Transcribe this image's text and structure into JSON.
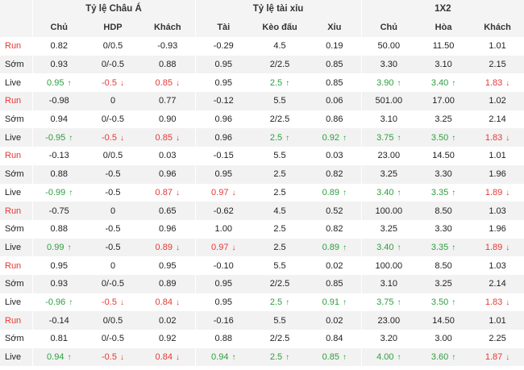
{
  "groups": [
    {
      "title": "Tỷ lệ Châu Á",
      "columns": [
        "Chủ",
        "HDP",
        "Khách"
      ]
    },
    {
      "title": "Tỷ lệ tài xỉu",
      "columns": [
        "Tài",
        "Kèo đấu",
        "Xỉu"
      ]
    },
    {
      "title": "1X2",
      "columns": [
        "Chủ",
        "Hòa",
        "Khách"
      ]
    }
  ],
  "colors": {
    "up": "#2e9e3e",
    "down": "#e53935",
    "run_label": "#e53935",
    "alt_row_bg": "#f2f2f2"
  },
  "rows": [
    {
      "label": "Run",
      "cells": [
        {
          "v": "0.82"
        },
        {
          "v": "0/0.5"
        },
        {
          "v": "-0.93"
        },
        {
          "v": "-0.29"
        },
        {
          "v": "4.5"
        },
        {
          "v": "0.19"
        },
        {
          "v": "50.00"
        },
        {
          "v": "11.50"
        },
        {
          "v": "1.01"
        }
      ]
    },
    {
      "label": "Sớm",
      "cells": [
        {
          "v": "0.93"
        },
        {
          "v": "0/-0.5"
        },
        {
          "v": "0.88"
        },
        {
          "v": "0.95"
        },
        {
          "v": "2/2.5"
        },
        {
          "v": "0.85"
        },
        {
          "v": "3.30"
        },
        {
          "v": "3.10"
        },
        {
          "v": "2.15"
        }
      ]
    },
    {
      "label": "Live",
      "cells": [
        {
          "v": "0.95",
          "t": "up"
        },
        {
          "v": "-0.5",
          "t": "down"
        },
        {
          "v": "0.85",
          "t": "down"
        },
        {
          "v": "0.95"
        },
        {
          "v": "2.5",
          "t": "up"
        },
        {
          "v": "0.85"
        },
        {
          "v": "3.90",
          "t": "up"
        },
        {
          "v": "3.40",
          "t": "up"
        },
        {
          "v": "1.83",
          "t": "down"
        }
      ]
    },
    {
      "label": "Run",
      "cells": [
        {
          "v": "-0.98"
        },
        {
          "v": "0"
        },
        {
          "v": "0.77"
        },
        {
          "v": "-0.12"
        },
        {
          "v": "5.5"
        },
        {
          "v": "0.06"
        },
        {
          "v": "501.00"
        },
        {
          "v": "17.00"
        },
        {
          "v": "1.02"
        }
      ]
    },
    {
      "label": "Sớm",
      "cells": [
        {
          "v": "0.94"
        },
        {
          "v": "0/-0.5"
        },
        {
          "v": "0.90"
        },
        {
          "v": "0.96"
        },
        {
          "v": "2/2.5"
        },
        {
          "v": "0.86"
        },
        {
          "v": "3.10"
        },
        {
          "v": "3.25"
        },
        {
          "v": "2.14"
        }
      ]
    },
    {
      "label": "Live",
      "cells": [
        {
          "v": "-0.95",
          "t": "up"
        },
        {
          "v": "-0.5",
          "t": "down"
        },
        {
          "v": "0.85",
          "t": "down"
        },
        {
          "v": "0.96"
        },
        {
          "v": "2.5",
          "t": "up"
        },
        {
          "v": "0.92",
          "t": "up"
        },
        {
          "v": "3.75",
          "t": "up"
        },
        {
          "v": "3.50",
          "t": "up"
        },
        {
          "v": "1.83",
          "t": "down"
        }
      ]
    },
    {
      "label": "Run",
      "cells": [
        {
          "v": "-0.13"
        },
        {
          "v": "0/0.5"
        },
        {
          "v": "0.03"
        },
        {
          "v": "-0.15"
        },
        {
          "v": "5.5"
        },
        {
          "v": "0.03"
        },
        {
          "v": "23.00"
        },
        {
          "v": "14.50"
        },
        {
          "v": "1.01"
        }
      ]
    },
    {
      "label": "Sớm",
      "cells": [
        {
          "v": "0.88"
        },
        {
          "v": "-0.5"
        },
        {
          "v": "0.96"
        },
        {
          "v": "0.95"
        },
        {
          "v": "2.5"
        },
        {
          "v": "0.82"
        },
        {
          "v": "3.25"
        },
        {
          "v": "3.30"
        },
        {
          "v": "1.96"
        }
      ]
    },
    {
      "label": "Live",
      "cells": [
        {
          "v": "-0.99",
          "t": "up"
        },
        {
          "v": "-0.5"
        },
        {
          "v": "0.87",
          "t": "down"
        },
        {
          "v": "0.97",
          "t": "down"
        },
        {
          "v": "2.5"
        },
        {
          "v": "0.89",
          "t": "up"
        },
        {
          "v": "3.40",
          "t": "up"
        },
        {
          "v": "3.35",
          "t": "up"
        },
        {
          "v": "1.89",
          "t": "down"
        }
      ]
    },
    {
      "label": "Run",
      "cells": [
        {
          "v": "-0.75"
        },
        {
          "v": "0"
        },
        {
          "v": "0.65"
        },
        {
          "v": "-0.62"
        },
        {
          "v": "4.5"
        },
        {
          "v": "0.52"
        },
        {
          "v": "100.00"
        },
        {
          "v": "8.50"
        },
        {
          "v": "1.03"
        }
      ]
    },
    {
      "label": "Sớm",
      "cells": [
        {
          "v": "0.88"
        },
        {
          "v": "-0.5"
        },
        {
          "v": "0.96"
        },
        {
          "v": "1.00"
        },
        {
          "v": "2.5"
        },
        {
          "v": "0.82"
        },
        {
          "v": "3.25"
        },
        {
          "v": "3.30"
        },
        {
          "v": "1.96"
        }
      ]
    },
    {
      "label": "Live",
      "cells": [
        {
          "v": "0.99",
          "t": "up"
        },
        {
          "v": "-0.5"
        },
        {
          "v": "0.89",
          "t": "down"
        },
        {
          "v": "0.97",
          "t": "down"
        },
        {
          "v": "2.5"
        },
        {
          "v": "0.89",
          "t": "up"
        },
        {
          "v": "3.40",
          "t": "up"
        },
        {
          "v": "3.35",
          "t": "up"
        },
        {
          "v": "1.89",
          "t": "down"
        }
      ]
    },
    {
      "label": "Run",
      "cells": [
        {
          "v": "0.95"
        },
        {
          "v": "0"
        },
        {
          "v": "0.95"
        },
        {
          "v": "-0.10"
        },
        {
          "v": "5.5"
        },
        {
          "v": "0.02"
        },
        {
          "v": "100.00"
        },
        {
          "v": "8.50"
        },
        {
          "v": "1.03"
        }
      ]
    },
    {
      "label": "Sớm",
      "cells": [
        {
          "v": "0.93"
        },
        {
          "v": "0/-0.5"
        },
        {
          "v": "0.89"
        },
        {
          "v": "0.95"
        },
        {
          "v": "2/2.5"
        },
        {
          "v": "0.85"
        },
        {
          "v": "3.10"
        },
        {
          "v": "3.25"
        },
        {
          "v": "2.14"
        }
      ]
    },
    {
      "label": "Live",
      "cells": [
        {
          "v": "-0.96",
          "t": "up"
        },
        {
          "v": "-0.5",
          "t": "down"
        },
        {
          "v": "0.84",
          "t": "down"
        },
        {
          "v": "0.95"
        },
        {
          "v": "2.5",
          "t": "up"
        },
        {
          "v": "0.91",
          "t": "up"
        },
        {
          "v": "3.75",
          "t": "up"
        },
        {
          "v": "3.50",
          "t": "up"
        },
        {
          "v": "1.83",
          "t": "down"
        }
      ]
    },
    {
      "label": "Run",
      "cells": [
        {
          "v": "-0.14"
        },
        {
          "v": "0/0.5"
        },
        {
          "v": "0.02"
        },
        {
          "v": "-0.16"
        },
        {
          "v": "5.5"
        },
        {
          "v": "0.02"
        },
        {
          "v": "23.00"
        },
        {
          "v": "14.50"
        },
        {
          "v": "1.01"
        }
      ]
    },
    {
      "label": "Sớm",
      "cells": [
        {
          "v": "0.81"
        },
        {
          "v": "0/-0.5"
        },
        {
          "v": "0.92"
        },
        {
          "v": "0.88"
        },
        {
          "v": "2/2.5"
        },
        {
          "v": "0.84"
        },
        {
          "v": "3.20"
        },
        {
          "v": "3.00"
        },
        {
          "v": "2.25"
        }
      ]
    },
    {
      "label": "Live",
      "cells": [
        {
          "v": "0.94",
          "t": "up"
        },
        {
          "v": "-0.5",
          "t": "down"
        },
        {
          "v": "0.84",
          "t": "down"
        },
        {
          "v": "0.94",
          "t": "up"
        },
        {
          "v": "2.5",
          "t": "up"
        },
        {
          "v": "0.85",
          "t": "up"
        },
        {
          "v": "4.00",
          "t": "up"
        },
        {
          "v": "3.60",
          "t": "up"
        },
        {
          "v": "1.87",
          "t": "down"
        }
      ]
    }
  ]
}
